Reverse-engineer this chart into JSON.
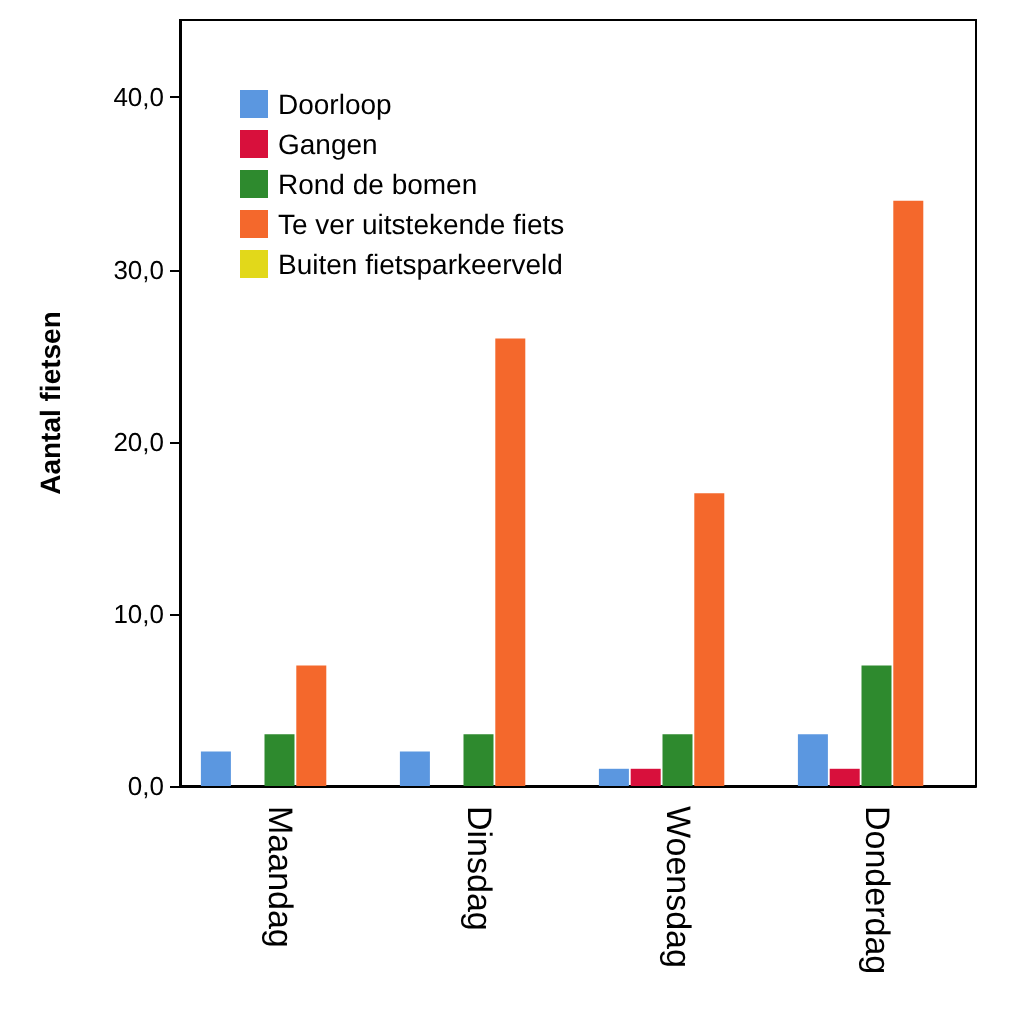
{
  "chart_data": {
    "type": "bar",
    "ylabel": "Aantal fietsen",
    "categories": [
      "Maandag",
      "Dinsdag",
      "Woensdag",
      "Donderdag"
    ],
    "series": [
      {
        "name": "Doorloop",
        "color": "#5b97e0",
        "values": [
          2,
          2,
          1,
          3
        ]
      },
      {
        "name": "Gangen",
        "color": "#d8103c",
        "values": [
          0,
          0,
          1,
          1
        ]
      },
      {
        "name": "Rond de bomen",
        "color": "#2e8a2e",
        "values": [
          3,
          3,
          3,
          7
        ]
      },
      {
        "name": "Te ver uitstekende fiets",
        "color": "#f4682c",
        "values": [
          7,
          26,
          17,
          34
        ]
      },
      {
        "name": "Buiten fietsparkeerveld",
        "color": "#e2d81a",
        "values": [
          0,
          0,
          0,
          0
        ]
      }
    ],
    "ylim": [
      0,
      44.5
    ],
    "yticks": [
      {
        "value": 0,
        "label": "0,0"
      },
      {
        "value": 10,
        "label": "10,0"
      },
      {
        "value": 20,
        "label": "20,0"
      },
      {
        "value": 30,
        "label": "30,0"
      },
      {
        "value": 40,
        "label": "40,0"
      }
    ],
    "grid": false,
    "legend": "top left"
  }
}
